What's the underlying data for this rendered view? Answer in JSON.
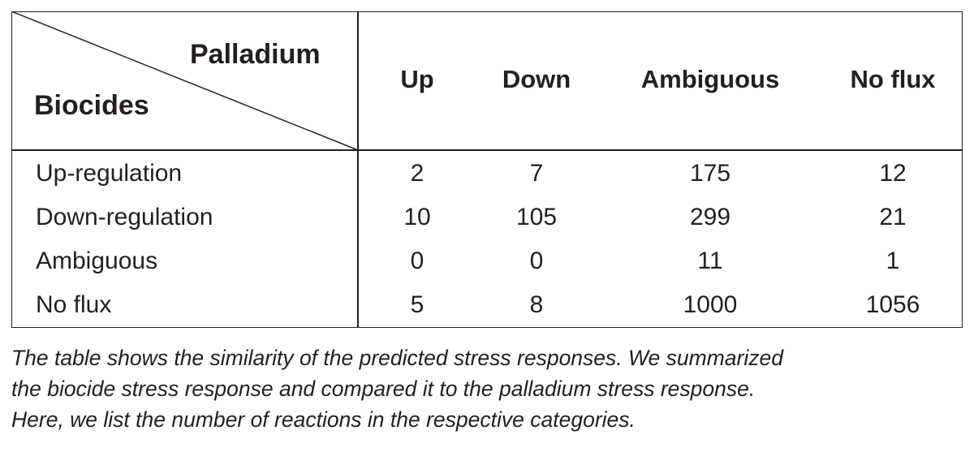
{
  "table": {
    "corner": {
      "column_axis_label": "Palladium",
      "row_axis_label": "Biocides"
    },
    "columns": [
      "Up",
      "Down",
      "Ambiguous",
      "No flux"
    ],
    "rows": [
      {
        "label": "Up-regulation",
        "values": [
          "2",
          "7",
          "175",
          "12"
        ]
      },
      {
        "label": "Down-regulation",
        "values": [
          "10",
          "105",
          "299",
          "21"
        ]
      },
      {
        "label": "Ambiguous",
        "values": [
          "0",
          "0",
          "11",
          "1"
        ]
      },
      {
        "label": "No flux",
        "values": [
          "5",
          "8",
          "1000",
          "1056"
        ]
      }
    ]
  },
  "caption": {
    "lines": [
      "The table shows the similarity of the predicted stress responses. We summarized",
      "the biocide stress response and compared it to the palladium stress response.",
      "Here, we list the number of reactions in the respective categories."
    ]
  }
}
